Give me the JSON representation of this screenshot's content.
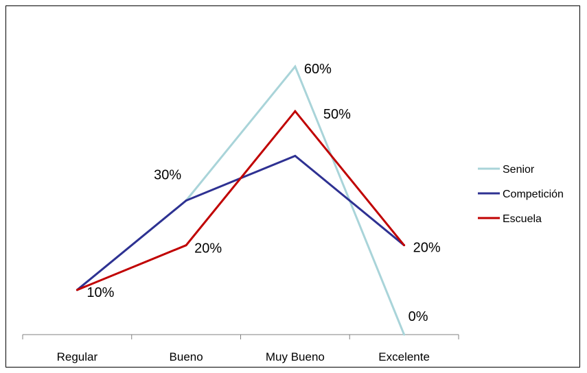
{
  "chart_data": {
    "type": "line",
    "categories": [
      "Regular",
      "Bueno",
      "Muy Bueno",
      "Excelente"
    ],
    "series": [
      {
        "name": "Senior",
        "color": "#a9d4d9",
        "values": [
          10,
          30,
          60,
          0
        ]
      },
      {
        "name": "Competición",
        "color": "#2e3192",
        "values": [
          10,
          30,
          40,
          20
        ]
      },
      {
        "name": "Escuela",
        "color": "#c00000",
        "values": [
          10,
          20,
          50,
          20
        ]
      }
    ],
    "data_labels": [
      {
        "text": "10%",
        "category": 0,
        "value": 10
      },
      {
        "text": "30%",
        "category": 1,
        "value": 30
      },
      {
        "text": "20%",
        "category": 1,
        "value": 20
      },
      {
        "text": "60%",
        "category": 2,
        "value": 60
      },
      {
        "text": "50%",
        "category": 2,
        "value": 50
      },
      {
        "text": "20%",
        "category": 3,
        "value": 20
      },
      {
        "text": "0%",
        "category": 3,
        "value": 0
      }
    ],
    "ylim": [
      0,
      60
    ],
    "grid": false,
    "legend_position": "right"
  }
}
